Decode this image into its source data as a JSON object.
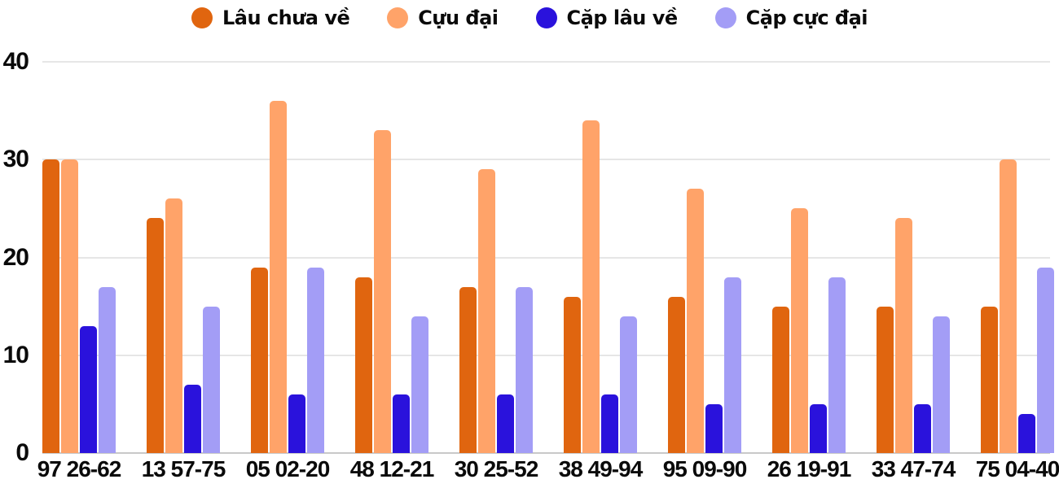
{
  "chart_data": {
    "type": "bar",
    "title": "",
    "xlabel": "",
    "ylabel": "",
    "categories": [
      "97 26-62",
      "13 57-75",
      "05 02-20",
      "48 12-21",
      "30 25-52",
      "38 49-94",
      "95 09-90",
      "26 19-91",
      "33 47-74",
      "75 04-40"
    ],
    "series": [
      {
        "name": "Lâu chưa về",
        "color": "#e0650f",
        "values": [
          30,
          24,
          19,
          18,
          17,
          16,
          16,
          15,
          15,
          15
        ]
      },
      {
        "name": "Cựu đại",
        "color": "#ffa369",
        "values": [
          30,
          26,
          36,
          33,
          29,
          34,
          27,
          25,
          24,
          30
        ]
      },
      {
        "name": "Cặp lâu về",
        "color": "#2a12dc",
        "values": [
          13,
          7,
          6,
          6,
          6,
          6,
          5,
          5,
          5,
          4
        ]
      },
      {
        "name": "Cặp cực đại",
        "color": "#a39df6",
        "values": [
          17,
          15,
          19,
          14,
          17,
          14,
          18,
          18,
          14,
          19
        ]
      }
    ],
    "ylim": [
      0,
      40
    ],
    "yticks": [
      0,
      10,
      20,
      30,
      40
    ],
    "grid": true,
    "legend_position": "top",
    "background_color": "#ffffff",
    "gridline_color": "#e6e6e6",
    "axis_line_color": "#c9c9c9",
    "text_color": "#0a0a0a"
  }
}
